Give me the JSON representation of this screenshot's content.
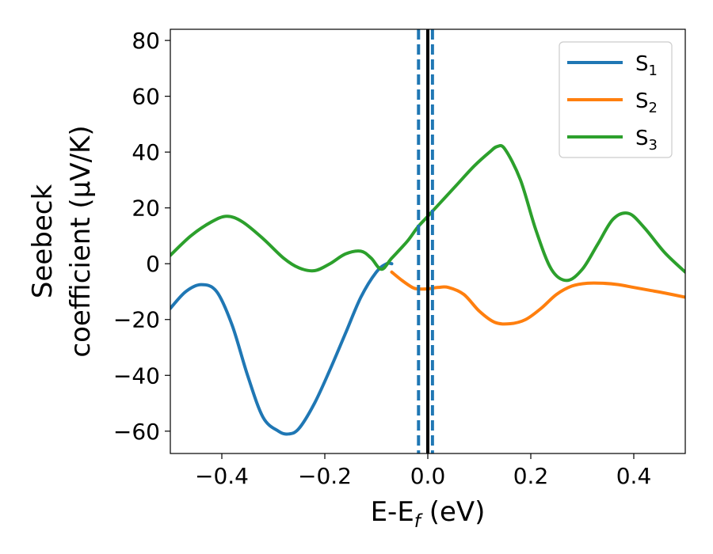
{
  "chart_data": {
    "type": "line",
    "xlabel": {
      "main": "E-E",
      "sub": "f",
      "unit": " (eV)"
    },
    "ylabel": {
      "line1": "Seebeck",
      "line2": "coefficient  (μV/K)"
    },
    "xlim": [
      -0.5,
      0.5
    ],
    "ylim": [
      -68,
      84
    ],
    "xticks": [
      -0.4,
      -0.2,
      0.0,
      0.2,
      0.4
    ],
    "xtick_labels": [
      "−0.4",
      "−0.2",
      "0.0",
      "0.2",
      "0.4"
    ],
    "yticks": [
      -60,
      -40,
      -20,
      0,
      20,
      40,
      60,
      80
    ],
    "ytick_labels": [
      "−60",
      "−40",
      "−20",
      "0",
      "20",
      "40",
      "60",
      "80"
    ],
    "grid": false,
    "legend_position": "top-right",
    "series": [
      {
        "name": "S",
        "sub": "1",
        "color": "#1f77b4",
        "x": [
          -0.5,
          -0.47,
          -0.44,
          -0.41,
          -0.38,
          -0.35,
          -0.32,
          -0.29,
          -0.27,
          -0.25,
          -0.22,
          -0.19,
          -0.16,
          -0.13,
          -0.1,
          -0.08,
          -0.07
        ],
        "y": [
          -16,
          -10,
          -7.5,
          -10,
          -22,
          -40,
          -55,
          -60,
          -61,
          -59,
          -50,
          -38,
          -25,
          -12,
          -3,
          0,
          0
        ]
      },
      {
        "name": "S",
        "sub": "2",
        "color": "#ff7f0e",
        "x": [
          -0.07,
          -0.05,
          -0.03,
          -0.02,
          0.0,
          0.02,
          0.04,
          0.07,
          0.1,
          0.13,
          0.16,
          0.19,
          0.22,
          0.25,
          0.28,
          0.31,
          0.34,
          0.37,
          0.4,
          0.43,
          0.46,
          0.5
        ],
        "y": [
          -3,
          -6,
          -8.5,
          -9,
          -9,
          -8.5,
          -8.5,
          -11,
          -17,
          -21,
          -21.5,
          -20,
          -16,
          -11,
          -8,
          -7,
          -7,
          -7.5,
          -8.5,
          -9.5,
          -10.5,
          -12
        ]
      },
      {
        "name": "S",
        "sub": "3",
        "color": "#2ca02c",
        "x": [
          -0.5,
          -0.46,
          -0.42,
          -0.39,
          -0.36,
          -0.32,
          -0.28,
          -0.25,
          -0.22,
          -0.19,
          -0.16,
          -0.13,
          -0.11,
          -0.09,
          -0.07,
          -0.04,
          -0.02,
          0.0,
          0.03,
          0.06,
          0.09,
          0.12,
          0.135,
          0.15,
          0.18,
          0.21,
          0.24,
          0.27,
          0.3,
          0.33,
          0.36,
          0.39,
          0.42,
          0.46,
          0.5
        ],
        "y": [
          3,
          10,
          15,
          17,
          15,
          9,
          2,
          -1.5,
          -2.5,
          0,
          3.5,
          4.5,
          2,
          -2,
          2,
          8,
          13,
          17,
          23,
          29,
          35,
          40,
          42,
          41,
          30,
          12,
          -2,
          -6,
          -2,
          7,
          16,
          18,
          13,
          4,
          -3
        ]
      }
    ],
    "vlines": [
      {
        "x": 0.0,
        "color": "#000000",
        "style": "solid"
      },
      {
        "x": -0.018,
        "color": "#1f77b4",
        "style": "dashed"
      },
      {
        "x": 0.009,
        "color": "#1f77b4",
        "style": "dashed"
      }
    ]
  }
}
